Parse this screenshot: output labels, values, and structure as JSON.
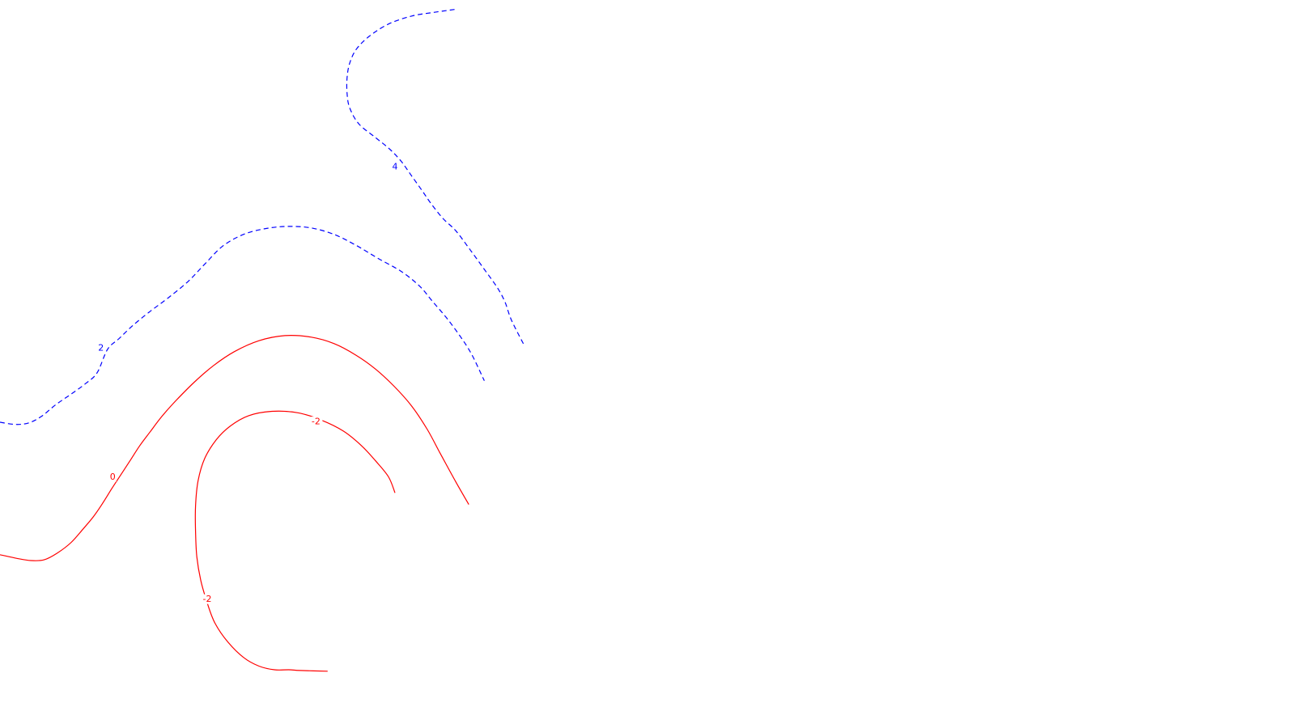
{
  "chart_data": {
    "type": "contour",
    "title": "",
    "xlabel": "",
    "ylabel": "",
    "grid": false,
    "colors": {
      "negative": "#ff0000",
      "positive": "#0000ff",
      "background": "#ffffff"
    },
    "levels": [
      {
        "level": "-2",
        "segments": [
          {
            "label": "-2",
            "points": [
              [
                0.305,
                0.677
              ],
              [
                0.3,
                0.655
              ],
              [
                0.29,
                0.633
              ],
              [
                0.279,
                0.612
              ],
              [
                0.265,
                0.592
              ],
              [
                0.248,
                0.577
              ],
              [
                0.23,
                0.567
              ],
              [
                0.21,
                0.565
              ],
              [
                0.192,
                0.571
              ],
              [
                0.178,
                0.585
              ],
              [
                0.167,
                0.604
              ],
              [
                0.158,
                0.63
              ],
              [
                0.153,
                0.66
              ],
              [
                0.151,
                0.695
              ],
              [
                0.151,
                0.73
              ],
              [
                0.152,
                0.765
              ],
              [
                0.155,
                0.797
              ],
              [
                0.16,
                0.828
              ],
              [
                0.166,
                0.856
              ],
              [
                0.176,
                0.882
              ],
              [
                0.188,
                0.903
              ],
              [
                0.2,
                0.915
              ],
              [
                0.212,
                0.92
              ],
              [
                0.223,
                0.92
              ],
              [
                0.232,
                0.921
              ],
              [
                0.253,
                0.922
              ]
            ],
            "label_points": [
              [
                0.244,
                0.579
              ],
              [
                0.16,
                0.823
              ]
            ]
          }
        ]
      },
      {
        "level": "0",
        "segments": [
          {
            "label": "0",
            "points": [
              [
                0.0,
                0.762
              ],
              [
                0.013,
                0.767
              ],
              [
                0.024,
                0.77
              ],
              [
                0.034,
                0.769
              ],
              [
                0.044,
                0.76
              ],
              [
                0.055,
                0.745
              ],
              [
                0.064,
                0.727
              ],
              [
                0.072,
                0.71
              ],
              [
                0.079,
                0.692
              ],
              [
                0.086,
                0.672
              ],
              [
                0.093,
                0.653
              ],
              [
                0.1,
                0.634
              ],
              [
                0.108,
                0.612
              ],
              [
                0.116,
                0.593
              ],
              [
                0.125,
                0.572
              ],
              [
                0.136,
                0.55
              ],
              [
                0.15,
                0.525
              ],
              [
                0.165,
                0.502
              ],
              [
                0.181,
                0.483
              ],
              [
                0.2,
                0.468
              ],
              [
                0.22,
                0.461
              ],
              [
                0.24,
                0.463
              ],
              [
                0.258,
                0.472
              ],
              [
                0.275,
                0.488
              ],
              [
                0.29,
                0.507
              ],
              [
                0.304,
                0.53
              ],
              [
                0.318,
                0.558
              ],
              [
                0.33,
                0.59
              ],
              [
                0.34,
                0.623
              ],
              [
                0.352,
                0.662
              ],
              [
                0.362,
                0.693
              ]
            ],
            "label_points": [
              [
                0.087,
                0.655
              ]
            ]
          }
        ]
      },
      {
        "level": "2",
        "segments": [
          {
            "label": "2",
            "points": [
              [
                0.0,
                0.58
              ],
              [
                0.012,
                0.583
              ],
              [
                0.022,
                0.581
              ],
              [
                0.032,
                0.572
              ],
              [
                0.043,
                0.556
              ],
              [
                0.056,
                0.54
              ],
              [
                0.066,
                0.527
              ],
              [
                0.075,
                0.512
              ],
              [
                0.083,
                0.48
              ],
              [
                0.092,
                0.465
              ],
              [
                0.102,
                0.448
              ],
              [
                0.115,
                0.429
              ],
              [
                0.13,
                0.409
              ],
              [
                0.145,
                0.387
              ],
              [
                0.158,
                0.363
              ],
              [
                0.172,
                0.338
              ],
              [
                0.188,
                0.322
              ],
              [
                0.205,
                0.314
              ],
              [
                0.222,
                0.311
              ],
              [
                0.24,
                0.313
              ],
              [
                0.258,
                0.322
              ],
              [
                0.275,
                0.337
              ],
              [
                0.292,
                0.355
              ],
              [
                0.31,
                0.373
              ],
              [
                0.324,
                0.393
              ],
              [
                0.334,
                0.414
              ],
              [
                0.345,
                0.437
              ],
              [
                0.355,
                0.461
              ],
              [
                0.364,
                0.486
              ],
              [
                0.374,
                0.523
              ]
            ],
            "label_points": [
              [
                0.078,
                0.478
              ]
            ]
          }
        ]
      },
      {
        "level": "4",
        "segments": [
          {
            "label": "4",
            "points": [
              [
                0.351,
                0.013
              ],
              [
                0.335,
                0.017
              ],
              [
                0.318,
                0.022
              ],
              [
                0.3,
                0.033
              ],
              [
                0.285,
                0.05
              ],
              [
                0.275,
                0.068
              ],
              [
                0.27,
                0.087
              ],
              [
                0.268,
                0.107
              ],
              [
                0.268,
                0.128
              ],
              [
                0.27,
                0.148
              ],
              [
                0.277,
                0.17
              ],
              [
                0.29,
                0.189
              ],
              [
                0.301,
                0.205
              ],
              [
                0.31,
                0.222
              ],
              [
                0.318,
                0.242
              ],
              [
                0.326,
                0.262
              ],
              [
                0.333,
                0.28
              ],
              [
                0.342,
                0.3
              ],
              [
                0.352,
                0.317
              ],
              [
                0.363,
                0.343
              ],
              [
                0.374,
                0.37
              ],
              [
                0.384,
                0.395
              ],
              [
                0.39,
                0.415
              ],
              [
                0.395,
                0.44
              ],
              [
                0.405,
                0.475
              ]
            ],
            "label_points": [
              [
                0.305,
                0.229
              ]
            ]
          }
        ]
      }
    ]
  }
}
